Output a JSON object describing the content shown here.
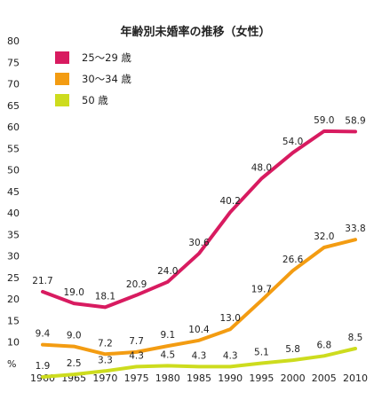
{
  "chart_data": {
    "type": "line",
    "title": "年齢別未婚率の推移（女性）",
    "x": [
      1960,
      1965,
      1970,
      1975,
      1980,
      1985,
      1990,
      1995,
      2000,
      2005,
      2010
    ],
    "x_tick_labels": [
      "1960",
      "1965",
      "1970",
      "1975",
      "1980",
      "1985",
      "1990",
      "1995",
      "2000",
      "2005",
      "2010"
    ],
    "ylim": [
      5,
      80
    ],
    "y_tick_labels": [
      "80",
      "75",
      "70",
      "65",
      "60",
      "55",
      "50",
      "45",
      "40",
      "35",
      "30",
      "25",
      "20",
      "15",
      "10",
      "%"
    ],
    "y_unit": "%",
    "grid": false,
    "legend_position": "top-left",
    "series": [
      {
        "name": "25〜29 歳",
        "color": "#d81b60",
        "values": [
          21.7,
          19.0,
          18.1,
          20.9,
          24.0,
          30.6,
          40.2,
          48.0,
          54.0,
          59.0,
          58.9
        ],
        "labels": [
          "21.7",
          "19.0",
          "18.1",
          "20.9",
          "24.0",
          "30.6",
          "40.2",
          "48.0",
          "54.0",
          "59.0",
          "58.9"
        ]
      },
      {
        "name": "30〜34 歳",
        "color": "#f39c12",
        "values": [
          9.4,
          9.0,
          7.2,
          7.7,
          9.1,
          10.4,
          13.0,
          19.7,
          26.6,
          32.0,
          33.8
        ],
        "labels": [
          "9.4",
          "9.0",
          "7.2",
          "7.7",
          "9.1",
          "10.4",
          "13.0",
          "19.7",
          "26.6",
          "32.0",
          "33.8"
        ]
      },
      {
        "name": "50 歳",
        "color": "#cddc1e",
        "values": [
          1.9,
          2.5,
          3.3,
          4.3,
          4.5,
          4.3,
          4.3,
          5.1,
          5.8,
          6.8,
          8.5
        ],
        "labels": [
          "1.9",
          "2.5",
          "3.3",
          "4.3",
          "4.5",
          "4.3",
          "4.3",
          "5.1",
          "5.8",
          "6.8",
          "8.5"
        ]
      }
    ]
  }
}
